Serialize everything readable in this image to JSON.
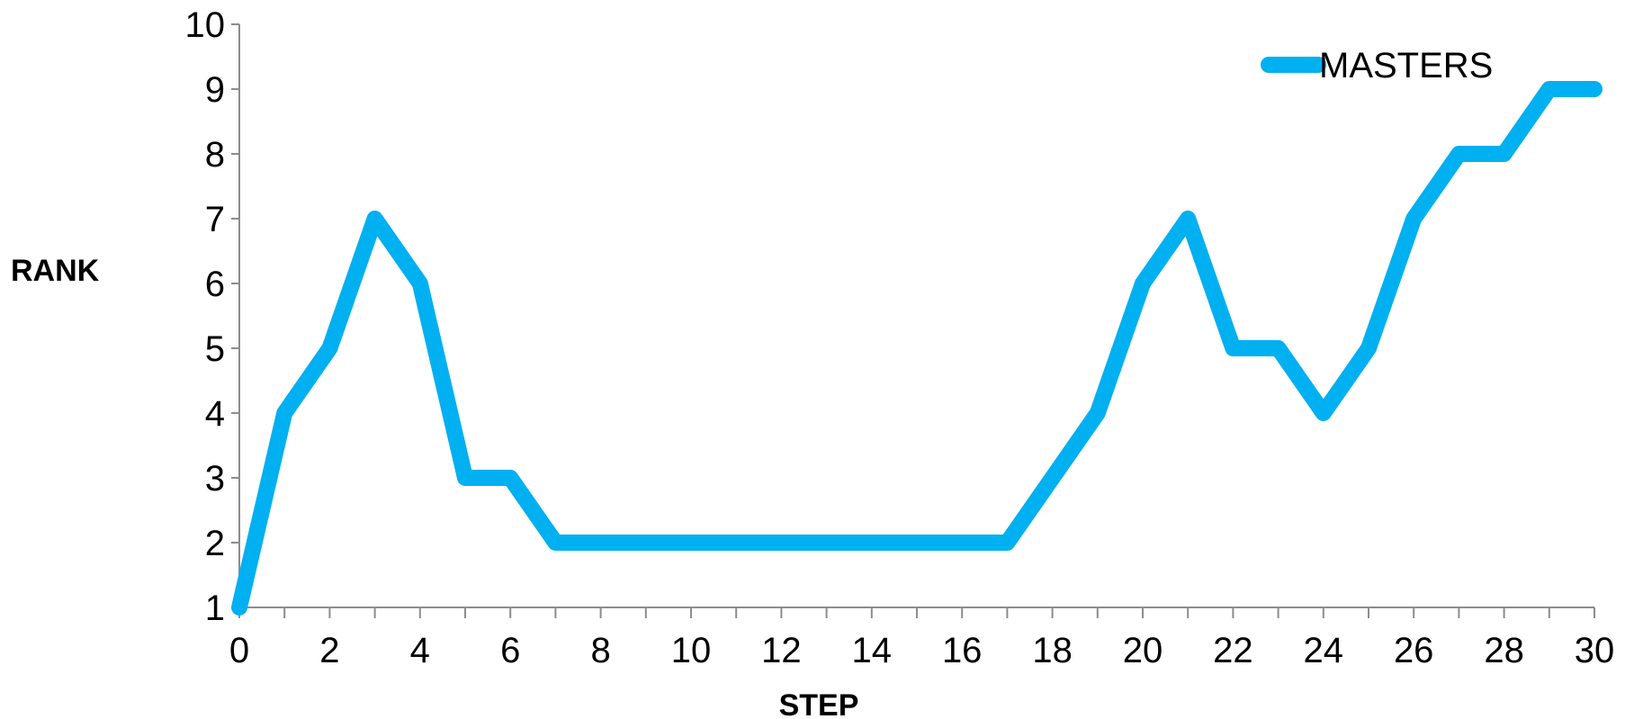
{
  "chart_data": {
    "type": "line",
    "xlabel": "STEP",
    "ylabel": "RANK",
    "xlim": [
      0,
      30
    ],
    "ylim": [
      1,
      10
    ],
    "x_ticks": [
      0,
      2,
      4,
      6,
      8,
      10,
      12,
      14,
      16,
      18,
      20,
      22,
      24,
      26,
      28,
      30
    ],
    "y_ticks": [
      1,
      2,
      3,
      4,
      5,
      6,
      7,
      8,
      9,
      10
    ],
    "grid": false,
    "legend_position": "top-right",
    "series": [
      {
        "name": "MASTERS",
        "color": "#00B0F0",
        "x": [
          0,
          1,
          2,
          3,
          4,
          5,
          6,
          7,
          8,
          9,
          10,
          11,
          12,
          13,
          14,
          15,
          16,
          17,
          18,
          19,
          20,
          21,
          22,
          23,
          24,
          25,
          26,
          27,
          28,
          29,
          30
        ],
        "y": [
          1,
          4,
          5,
          7,
          6,
          3,
          3,
          2,
          2,
          2,
          2,
          2,
          2,
          2,
          2,
          2,
          2,
          2,
          3,
          4,
          6,
          7,
          5,
          5,
          4,
          5,
          7,
          8,
          8,
          9,
          9
        ]
      }
    ]
  }
}
